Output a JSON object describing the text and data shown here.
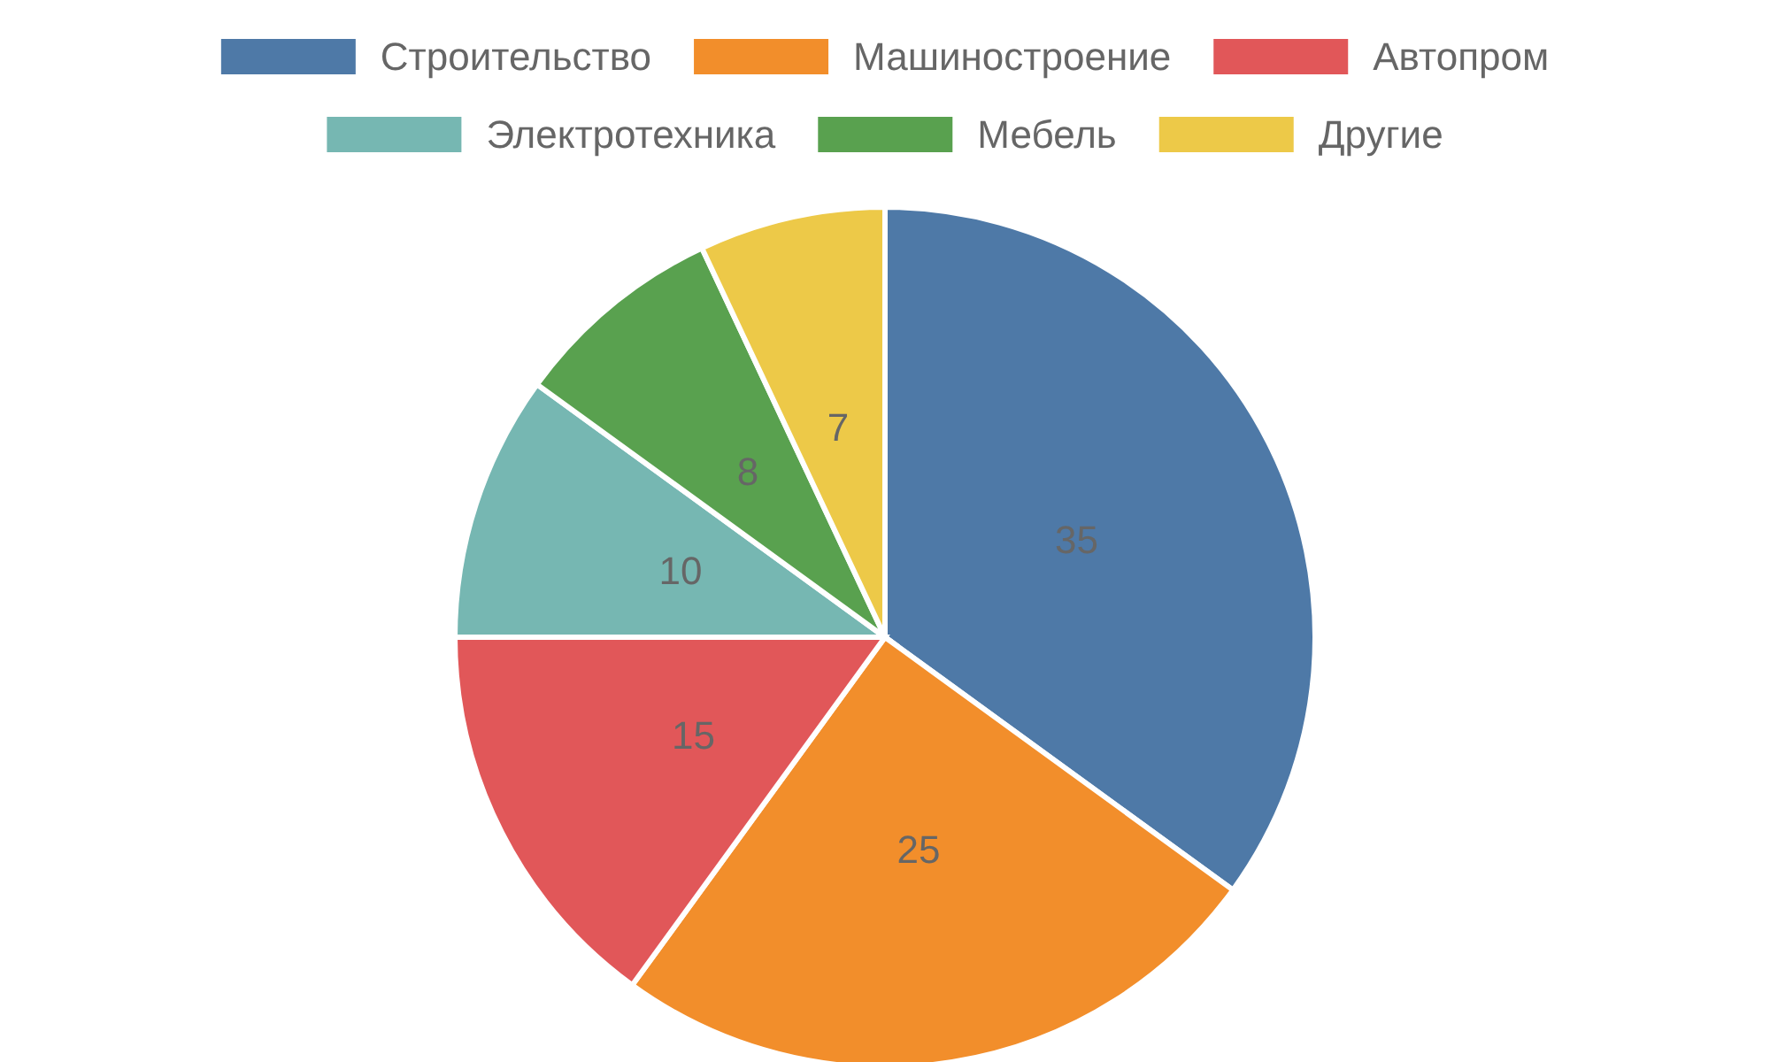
{
  "chart_data": {
    "type": "pie",
    "categories": [
      "Строительство",
      "Машиностроение",
      "Автопром",
      "Электротехника",
      "Мебель",
      "Другие"
    ],
    "values": [
      35,
      25,
      15,
      10,
      8,
      7
    ],
    "colors": [
      "#4e79a7",
      "#f28e2b",
      "#e15759",
      "#76b7b2",
      "#59a14f",
      "#edc948"
    ],
    "data_labels": true,
    "legend": "top"
  }
}
